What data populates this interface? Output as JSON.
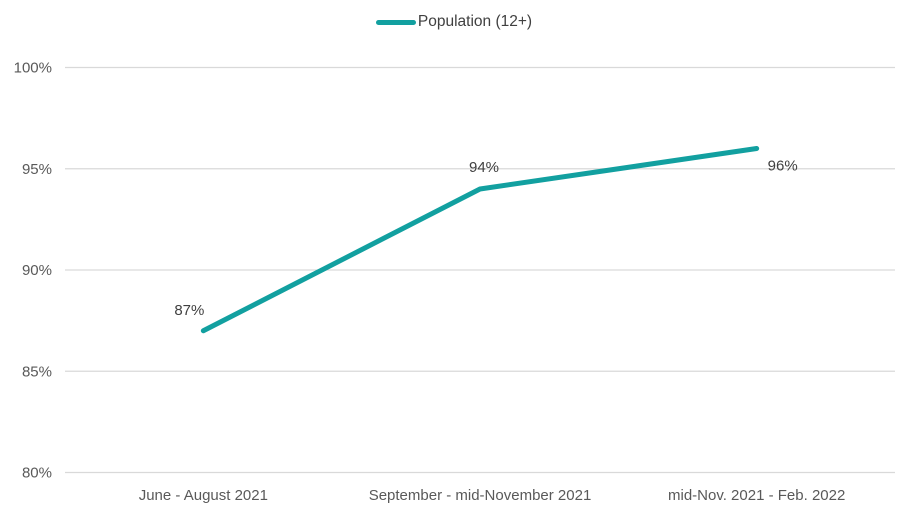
{
  "colors": {
    "line": "#12A0A0",
    "grid": "#D9D9D9",
    "axis_text": "#595959",
    "data_label_text": "#404040",
    "background": "#FFFFFF"
  },
  "legend": {
    "label": "Population (12+)"
  },
  "chart_data": {
    "type": "line",
    "title": "",
    "xlabel": "",
    "ylabel": "",
    "categories": [
      "June - August 2021",
      "September - mid-November 2021",
      "mid-Nov. 2021 - Feb. 2022"
    ],
    "series": [
      {
        "name": "Population (12+)",
        "values": [
          87,
          94,
          96
        ]
      }
    ],
    "data_labels": [
      "87%",
      "94%",
      "96%"
    ],
    "ytick_labels": [
      "100%",
      "95%",
      "90%",
      "85%",
      "80%"
    ],
    "ytick_values": [
      100,
      95,
      90,
      85,
      80
    ],
    "ylim": [
      80,
      100
    ],
    "grid": true,
    "legend_position": "top-center"
  }
}
